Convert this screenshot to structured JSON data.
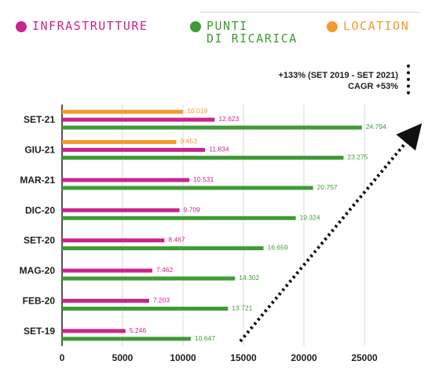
{
  "legend": [
    {
      "label": "INFRASTRUTTURE",
      "color": "#c8258e"
    },
    {
      "label": "PUNTI\nDI RICARICA",
      "color": "#3f9b35"
    },
    {
      "label": "LOCATION",
      "color": "#f39a2e"
    }
  ],
  "annotation": {
    "line1": "+133% (SET 2019 - SET 2021)",
    "line2": "CAGR +53%"
  },
  "chart_data": {
    "type": "bar",
    "orientation": "horizontal",
    "categories": [
      "SET-21",
      "GIU-21",
      "MAR-21",
      "DIC-20",
      "SET-20",
      "MAG-20",
      "FEB-20",
      "SET-19"
    ],
    "series": [
      {
        "name": "LOCATION",
        "color": "#f39a2e",
        "values": [
          10019,
          9453,
          null,
          null,
          null,
          null,
          null,
          null
        ],
        "labels": [
          "10.019",
          "9.453",
          null,
          null,
          null,
          null,
          null,
          null
        ]
      },
      {
        "name": "INFRASTRUTTURE",
        "color": "#c8258e",
        "values": [
          12623,
          11834,
          10531,
          9709,
          8467,
          7462,
          7203,
          5246
        ],
        "labels": [
          "12.623",
          "11.834",
          "10.531",
          "9.709",
          "8.467",
          "7.462",
          "7.203",
          "5.246"
        ]
      },
      {
        "name": "PUNTI DI RICARICA",
        "color": "#3f9b35",
        "values": [
          24794,
          23275,
          20757,
          19324,
          16659,
          14302,
          13721,
          10647
        ],
        "labels": [
          "24.794",
          "23.275",
          "20.757",
          "19.324",
          "16.659",
          "14.302",
          "13.721",
          "10.647"
        ]
      }
    ],
    "xlim": [
      0,
      25000
    ],
    "xticks": [
      0,
      5000,
      10000,
      15000,
      20000,
      25000
    ],
    "grid": true,
    "legend_position": "top"
  }
}
